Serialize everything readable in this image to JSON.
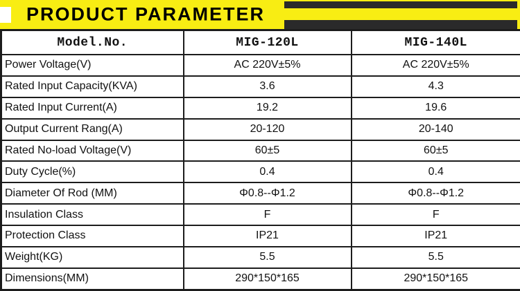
{
  "banner": {
    "title": "PRODUCT PARAMETER"
  },
  "table": {
    "header": {
      "col1": "Model.No.",
      "col2": "MIG-120L",
      "col3": "MIG-140L"
    },
    "rows": [
      {
        "label": "Power Voltage(V)",
        "v1": "AC 220V±5%",
        "v2": "AC 220V±5%"
      },
      {
        "label": "Rated Input Capacity(KVA)",
        "v1": "3.6",
        "v2": "4.3"
      },
      {
        "label": "Rated Input Current(A)",
        "v1": "19.2",
        "v2": "19.6"
      },
      {
        "label": "Output Current Rang(A)",
        "v1": "20-120",
        "v2": "20-140"
      },
      {
        "label": "Rated No-load Voltage(V)",
        "v1": "60±5",
        "v2": "60±5"
      },
      {
        "label": "Duty Cycle(%)",
        "v1": "0.4",
        "v2": "0.4"
      },
      {
        "label": "Diameter Of Rod (MM)",
        "v1": "Φ0.8--Φ1.2",
        "v2": "Φ0.8--Φ1.2"
      },
      {
        "label": "Insulation Class",
        "v1": "F",
        "v2": "F"
      },
      {
        "label": "Protection Class",
        "v1": "IP21",
        "v2": "IP21"
      },
      {
        "label": "Weight(KG)",
        "v1": "5.5",
        "v2": "5.5"
      },
      {
        "label": "Dimensions(MM)",
        "v1": "290*150*165",
        "v2": "290*150*165"
      }
    ]
  },
  "colors": {
    "banner_yellow": "#F8ED13",
    "stripe_black": "#2A2A2A",
    "table_border": "#1C1C1C"
  }
}
